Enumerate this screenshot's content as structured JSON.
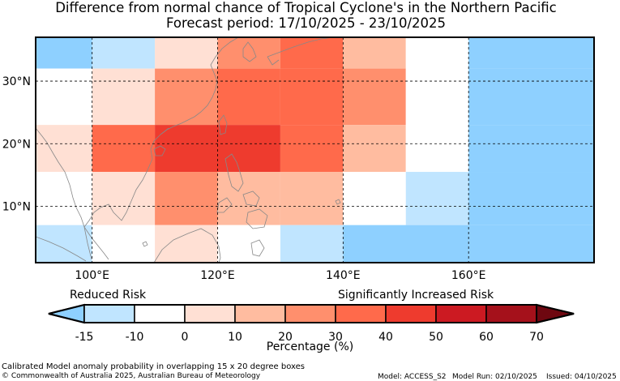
{
  "title": {
    "line1": "Difference from normal chance of Tropical Cyclone's in the Northern Pacific",
    "line2": "Forecast period: 17/10/2025 - 23/10/2025"
  },
  "map": {
    "lon_range": [
      91,
      180
    ],
    "lat_range": [
      1,
      37
    ],
    "lat_ticks": [
      {
        "value": 30,
        "label": "30°N"
      },
      {
        "value": 20,
        "label": "20°N"
      },
      {
        "value": 10,
        "label": "10°N"
      }
    ],
    "lon_ticks": [
      {
        "value": 100,
        "label": "100°E"
      },
      {
        "value": 120,
        "label": "120°E"
      },
      {
        "value": 140,
        "label": "140°E"
      },
      {
        "value": 160,
        "label": "160°E"
      }
    ],
    "cells": [
      {
        "lon0": 90,
        "lon1": 100,
        "lat0": 32,
        "lat1": 37,
        "bin": -2
      },
      {
        "lon0": 100,
        "lon1": 110,
        "lat0": 32,
        "lat1": 37,
        "bin": -1
      },
      {
        "lon0": 110,
        "lon1": 120,
        "lat0": 32,
        "lat1": 37,
        "bin": 1
      },
      {
        "lon0": 120,
        "lon1": 130,
        "lat0": 32,
        "lat1": 37,
        "bin": 3
      },
      {
        "lon0": 130,
        "lon1": 140,
        "lat0": 32,
        "lat1": 37,
        "bin": 4
      },
      {
        "lon0": 140,
        "lon1": 150,
        "lat0": 32,
        "lat1": 37,
        "bin": 2
      },
      {
        "lon0": 150,
        "lon1": 160,
        "lat0": 32,
        "lat1": 37,
        "bin": 0
      },
      {
        "lon0": 160,
        "lon1": 180,
        "lat0": 32,
        "lat1": 37,
        "bin": -2
      },
      {
        "lon0": 90,
        "lon1": 100,
        "lat0": 23,
        "lat1": 32,
        "bin": 0
      },
      {
        "lon0": 100,
        "lon1": 110,
        "lat0": 23,
        "lat1": 32,
        "bin": 1
      },
      {
        "lon0": 110,
        "lon1": 120,
        "lat0": 23,
        "lat1": 32,
        "bin": 3
      },
      {
        "lon0": 120,
        "lon1": 130,
        "lat0": 23,
        "lat1": 32,
        "bin": 4
      },
      {
        "lon0": 130,
        "lon1": 140,
        "lat0": 23,
        "lat1": 32,
        "bin": 4
      },
      {
        "lon0": 140,
        "lon1": 150,
        "lat0": 23,
        "lat1": 32,
        "bin": 3
      },
      {
        "lon0": 150,
        "lon1": 160,
        "lat0": 23,
        "lat1": 32,
        "bin": 0
      },
      {
        "lon0": 160,
        "lon1": 180,
        "lat0": 23,
        "lat1": 32,
        "bin": -2
      },
      {
        "lon0": 90,
        "lon1": 100,
        "lat0": 15.5,
        "lat1": 23,
        "bin": 1
      },
      {
        "lon0": 100,
        "lon1": 110,
        "lat0": 15.5,
        "lat1": 23,
        "bin": 4
      },
      {
        "lon0": 110,
        "lon1": 120,
        "lat0": 15.5,
        "lat1": 23,
        "bin": 5
      },
      {
        "lon0": 120,
        "lon1": 130,
        "lat0": 15.5,
        "lat1": 23,
        "bin": 5
      },
      {
        "lon0": 130,
        "lon1": 140,
        "lat0": 15.5,
        "lat1": 23,
        "bin": 4
      },
      {
        "lon0": 140,
        "lon1": 150,
        "lat0": 15.5,
        "lat1": 23,
        "bin": 2
      },
      {
        "lon0": 150,
        "lon1": 160,
        "lat0": 15.5,
        "lat1": 23,
        "bin": 0
      },
      {
        "lon0": 160,
        "lon1": 180,
        "lat0": 15.5,
        "lat1": 23,
        "bin": -2
      },
      {
        "lon0": 90,
        "lon1": 100,
        "lat0": 7,
        "lat1": 15.5,
        "bin": 0
      },
      {
        "lon0": 100,
        "lon1": 110,
        "lat0": 7,
        "lat1": 15.5,
        "bin": 1
      },
      {
        "lon0": 110,
        "lon1": 120,
        "lat0": 7,
        "lat1": 15.5,
        "bin": 3
      },
      {
        "lon0": 120,
        "lon1": 130,
        "lat0": 7,
        "lat1": 15.5,
        "bin": 2
      },
      {
        "lon0": 130,
        "lon1": 140,
        "lat0": 7,
        "lat1": 15.5,
        "bin": 2
      },
      {
        "lon0": 140,
        "lon1": 150,
        "lat0": 7,
        "lat1": 15.5,
        "bin": 0
      },
      {
        "lon0": 150,
        "lon1": 160,
        "lat0": 7,
        "lat1": 15.5,
        "bin": -1
      },
      {
        "lon0": 160,
        "lon1": 180,
        "lat0": 7,
        "lat1": 15.5,
        "bin": -2
      },
      {
        "lon0": 90,
        "lon1": 100,
        "lat0": 1,
        "lat1": 7,
        "bin": -1
      },
      {
        "lon0": 100,
        "lon1": 110,
        "lat0": 1,
        "lat1": 7,
        "bin": 0
      },
      {
        "lon0": 110,
        "lon1": 120,
        "lat0": 1,
        "lat1": 7,
        "bin": 1
      },
      {
        "lon0": 120,
        "lon1": 130,
        "lat0": 1,
        "lat1": 7,
        "bin": 0
      },
      {
        "lon0": 130,
        "lon1": 140,
        "lat0": 1,
        "lat1": 7,
        "bin": -1
      },
      {
        "lon0": 140,
        "lon1": 160,
        "lat0": 1,
        "lat1": 7,
        "bin": -2
      },
      {
        "lon0": 160,
        "lon1": 180,
        "lat0": 1,
        "lat1": 7,
        "bin": -2
      }
    ]
  },
  "legend": {
    "reduced_label": "Reduced Risk",
    "increased_label": "Significantly Increased Risk",
    "axis_label": "Percentage (%)",
    "bins": [
      {
        "key": -2,
        "color": "#8ed0ff"
      },
      {
        "key": -1,
        "color": "#c0e5ff"
      },
      {
        "key": 0,
        "color": "#ffffff"
      },
      {
        "key": 1,
        "color": "#ffe0d4"
      },
      {
        "key": 2,
        "color": "#ffbca0"
      },
      {
        "key": 3,
        "color": "#ff8f6d"
      },
      {
        "key": 4,
        "color": "#ff6a4b"
      },
      {
        "key": 5,
        "color": "#ee3b2e"
      },
      {
        "key": 6,
        "color": "#cc1a22"
      },
      {
        "key": 7,
        "color": "#a5111b"
      },
      {
        "key": 8,
        "color": "#6e0710"
      }
    ],
    "tick_labels": [
      "-15",
      "-10",
      "0",
      "10",
      "20",
      "30",
      "40",
      "50",
      "60",
      "70"
    ]
  },
  "footer": {
    "line1": "Calibrated Model anomaly probability in overlapping 15 x 20 degree boxes",
    "line2": "© Commonwealth of Australia 2025, Australian Bureau of Meteorology",
    "model": "Model: ACCESS_S2",
    "model_run": "Model Run: 02/10/2025",
    "issued": "Issued: 04/10/2025"
  }
}
